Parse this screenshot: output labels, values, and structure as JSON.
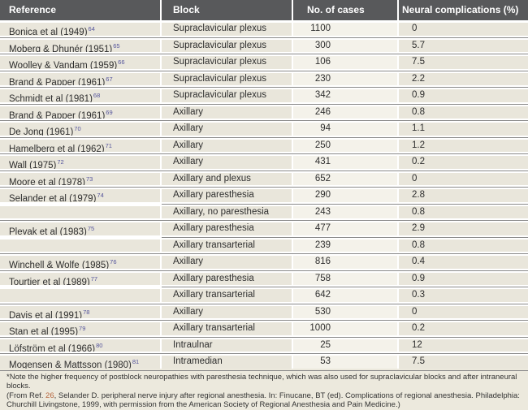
{
  "colors": {
    "header_bg": "#58595b",
    "header_text": "#ffffff",
    "row_bg": "#e9e6db",
    "cases_column_bg": "#f4f2ea",
    "footnote_bg": "#ece9dd",
    "separator_line": "#8a8a8a",
    "citation_superscript": "#54549b",
    "footnote_ref_link": "#b5643c",
    "bottom_bar": "#707173"
  },
  "table": {
    "columns": [
      "Reference",
      "Block",
      "No. of cases",
      "Neural complications (%)"
    ],
    "rows": [
      {
        "reference": "Bonica et al (1949)",
        "ref_sup": "64",
        "block": "Supraclavicular plexus",
        "cases": "1100",
        "complications_pct": "0",
        "partial_sep": false
      },
      {
        "reference": "Moberg & Dhunér (1951)",
        "ref_sup": "65",
        "block": "Supraclavicular plexus",
        "cases": "300",
        "complications_pct": "5.7",
        "partial_sep": false
      },
      {
        "reference": "Woolley & Vandam (1959)",
        "ref_sup": "66",
        "block": "Supraclavicular plexus",
        "cases": "106",
        "complications_pct": "7.5",
        "partial_sep": false
      },
      {
        "reference": "Brand & Papper (1961)",
        "ref_sup": "67",
        "block": "Supraclavicular plexus",
        "cases": "230",
        "complications_pct": "2.2",
        "partial_sep": false
      },
      {
        "reference": "Schmidt et al (1981)",
        "ref_sup": "68",
        "block": "Supraclavicular plexus",
        "cases": "342",
        "complications_pct": "0.9",
        "partial_sep": false
      },
      {
        "reference": "Brand & Papper (1961)",
        "ref_sup": "69",
        "block": "Axillary",
        "cases": "246",
        "complications_pct": "0.8",
        "partial_sep": false
      },
      {
        "reference": "De Jong (1961)",
        "ref_sup": "70",
        "block": "Axillary",
        "cases": "94",
        "complications_pct": "1.1",
        "partial_sep": false
      },
      {
        "reference": "Hamelberg et al (1962)",
        "ref_sup": "71",
        "block": "Axillary",
        "cases": "250",
        "complications_pct": "1.2",
        "partial_sep": false
      },
      {
        "reference": "Wall (1975)",
        "ref_sup": "72",
        "block": "Axillary",
        "cases": "431",
        "complications_pct": "0.2",
        "partial_sep": false
      },
      {
        "reference": "Moore et al (1978)",
        "ref_sup": "73",
        "block": "Axillary and plexus",
        "cases": "652",
        "complications_pct": "0",
        "partial_sep": false
      },
      {
        "reference": "Selander et al (1979)",
        "ref_sup": "74",
        "block": "Axillary paresthesia",
        "cases": "290",
        "complications_pct": "2.8",
        "partial_sep": false
      },
      {
        "reference": "",
        "ref_sup": "",
        "block": "Axillary, no paresthesia",
        "cases": "243",
        "complications_pct": "0.8",
        "partial_sep": true
      },
      {
        "reference": "Plevak et al (1983)",
        "ref_sup": "75",
        "block": "Axillary paresthesia",
        "cases": "477",
        "complications_pct": "2.9",
        "partial_sep": false
      },
      {
        "reference": "",
        "ref_sup": "",
        "block": "Axillary transarterial",
        "cases": "239",
        "complications_pct": "0.8",
        "partial_sep": true
      },
      {
        "reference": "Winchell & Wolfe (1985)",
        "ref_sup": "76",
        "block": "Axillary",
        "cases": "816",
        "complications_pct": "0.4",
        "partial_sep": false
      },
      {
        "reference": "Tourtier et al (1989)",
        "ref_sup": "77",
        "block": "Axillary paresthesia",
        "cases": "758",
        "complications_pct": "0.9",
        "partial_sep": false
      },
      {
        "reference": "",
        "ref_sup": "",
        "block": "Axillary transarterial",
        "cases": "642",
        "complications_pct": "0.3",
        "partial_sep": true
      },
      {
        "reference": "Davis et al (1991)",
        "ref_sup": "78",
        "block": "Axillary",
        "cases": "530",
        "complications_pct": "0",
        "partial_sep": false
      },
      {
        "reference": "Stan et al (1995)",
        "ref_sup": "79",
        "block": "Axillary transarterial",
        "cases": "1000",
        "complications_pct": "0.2",
        "partial_sep": false
      },
      {
        "reference": "Löfström et al (1966)",
        "ref_sup": "80",
        "block": "Intraulnar",
        "cases": "25",
        "complications_pct": "12",
        "partial_sep": false
      },
      {
        "reference": "Mogensen & Mattsson (1980)",
        "ref_sup": "81",
        "block": "Intramedian",
        "cases": "53",
        "complications_pct": "7.5",
        "partial_sep": false
      }
    ]
  },
  "footnote": {
    "marker": "*",
    "note": "Note the higher frequency of postblock neuropathies with paresthesia technique, which was also used for supraclavicular blocks and after intraneural blocks.",
    "citation_before": "(From Ref. ",
    "citation_ref": "26",
    "citation_after": ", Selander D. peripheral nerve injury after regional anesthesia. In: Finucane, BT (ed). Complications of regional anesthesia. Philadelphia: Churchill Livingstone, 1999, with permission from the American Society of Regional Anesthesia and Pain Medicine.)"
  }
}
